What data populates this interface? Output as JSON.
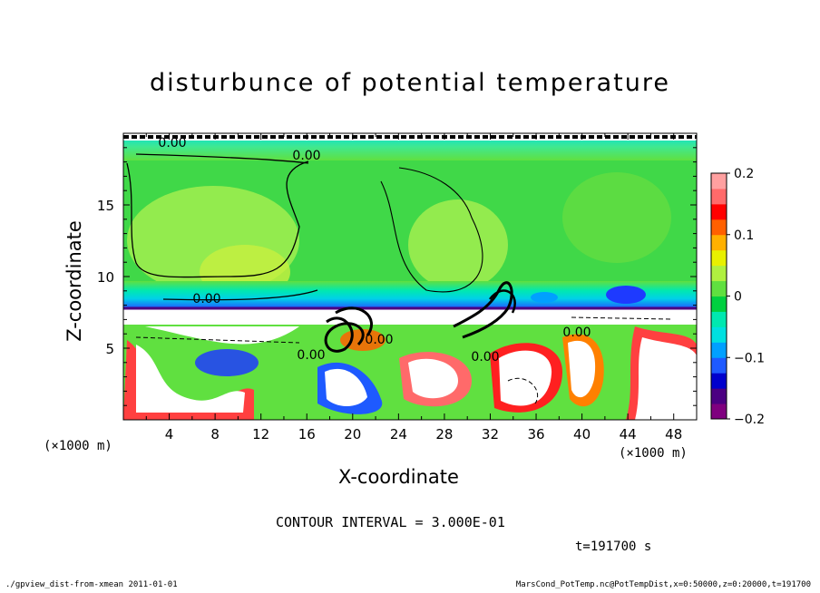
{
  "chart_data": {
    "type": "heatmap",
    "title": "disturbunce of potential temperature",
    "xlabel": "X-coordinate",
    "ylabel": "Z-coordinate",
    "x_unit_left": "(×1000 m)",
    "x_unit_right": "(×1000 m)",
    "xlim": [
      0,
      50
    ],
    "ylim": [
      0,
      20
    ],
    "x_ticks": [
      "4",
      "8",
      "12",
      "16",
      "20",
      "24",
      "28",
      "32",
      "36",
      "40",
      "44",
      "48"
    ],
    "y_ticks": [
      "5",
      "10",
      "15"
    ],
    "colorbar": {
      "range": [
        -0.2,
        0.2
      ],
      "tick_labels": [
        "0.2",
        "0.1",
        "0",
        "−0.1",
        "−0.2"
      ],
      "colors": [
        "#7f007f",
        "#4b0082",
        "#0000cd",
        "#1e5aff",
        "#00a0ff",
        "#00e0e0",
        "#00e8b0",
        "#00d040",
        "#60e040",
        "#b0f040",
        "#e8f000",
        "#ffb000",
        "#ff6000",
        "#ff0000",
        "#ff6a6a",
        "#ffa0a0"
      ]
    },
    "contour_labels": [
      "0.00",
      "0.00",
      "0.00",
      "0.00",
      "0.00",
      "0.00",
      "0.00"
    ],
    "contour_interval_text": "CONTOUR INTERVAL = 3.000E-01",
    "time_text": "t=191700 s"
  },
  "footer": {
    "left": "./gpview_dist-from-xmean  2011-01-01",
    "right": "MarsCond_PotTemp.nc@PotTempDist,x=0:50000,z=0:20000,t=191700"
  }
}
